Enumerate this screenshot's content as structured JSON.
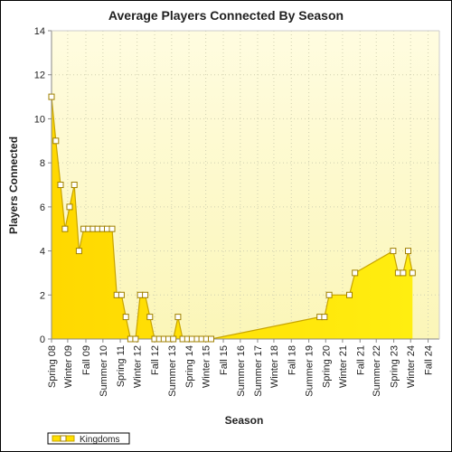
{
  "chart_data": {
    "type": "area",
    "title": "Average Players Connected By Season",
    "xlabel": "Season",
    "ylabel": "Players Connected",
    "ylim": [
      0,
      14
    ],
    "yticks": [
      0,
      2,
      4,
      6,
      8,
      10,
      12,
      14
    ],
    "grid": true,
    "legend_position": "bottom-left",
    "colors": {
      "fill": "#ffe000",
      "line": "#c8a400",
      "marker": "#ffffff",
      "background_top": "#fffce0",
      "background_bottom": "#fbf6b8"
    },
    "x_tick_labels": [
      {
        "label": "Spring 08",
        "day": 0
      },
      {
        "label": "Winter 09",
        "day": 259
      },
      {
        "label": "Fall 09",
        "day": 550
      },
      {
        "label": "Summer 10",
        "day": 823
      },
      {
        "label": "Spring 11",
        "day": 1101
      },
      {
        "label": "Winter 12",
        "day": 1370
      },
      {
        "label": "Fall 12",
        "day": 1651
      },
      {
        "label": "Summer 13",
        "day": 1923
      },
      {
        "label": "Spring 14",
        "day": 2201
      },
      {
        "label": "Winter 15",
        "day": 2470
      },
      {
        "label": "Fall 15",
        "day": 2751
      },
      {
        "label": "Summer 16",
        "day": 3023
      },
      {
        "label": "Summer 17",
        "day": 3300
      },
      {
        "label": "Winter 18",
        "day": 3560
      },
      {
        "label": "Fall 18",
        "day": 3840
      },
      {
        "label": "Summer 19",
        "day": 4120
      },
      {
        "label": "Spring 20",
        "day": 4390
      },
      {
        "label": "Winter 21",
        "day": 4660
      },
      {
        "label": "Fall 21",
        "day": 4940
      },
      {
        "label": "Summer 22",
        "day": 5200
      },
      {
        "label": "Spring 23",
        "day": 5480
      },
      {
        "label": "Winter 24",
        "day": 5750
      },
      {
        "label": "Fall 24",
        "day": 6030
      }
    ],
    "x_range_days": [
      0,
      6210
    ],
    "series": [
      {
        "name": "Kingdoms",
        "points": [
          {
            "day": 0,
            "value": 11
          },
          {
            "day": 70,
            "value": 9
          },
          {
            "day": 145,
            "value": 7
          },
          {
            "day": 215,
            "value": 5
          },
          {
            "day": 290,
            "value": 6
          },
          {
            "day": 365,
            "value": 7
          },
          {
            "day": 440,
            "value": 4
          },
          {
            "day": 515,
            "value": 5
          },
          {
            "day": 590,
            "value": 5
          },
          {
            "day": 665,
            "value": 5
          },
          {
            "day": 740,
            "value": 5
          },
          {
            "day": 815,
            "value": 5
          },
          {
            "day": 890,
            "value": 5
          },
          {
            "day": 970,
            "value": 5
          },
          {
            "day": 1045,
            "value": 2
          },
          {
            "day": 1120,
            "value": 2
          },
          {
            "day": 1190,
            "value": 1
          },
          {
            "day": 1265,
            "value": 0
          },
          {
            "day": 1345,
            "value": 0
          },
          {
            "day": 1420,
            "value": 2
          },
          {
            "day": 1500,
            "value": 2
          },
          {
            "day": 1575,
            "value": 1
          },
          {
            "day": 1650,
            "value": 0
          },
          {
            "day": 1725,
            "value": 0
          },
          {
            "day": 1800,
            "value": 0
          },
          {
            "day": 1875,
            "value": 0
          },
          {
            "day": 1950,
            "value": 0
          },
          {
            "day": 2025,
            "value": 1
          },
          {
            "day": 2100,
            "value": 0
          },
          {
            "day": 2175,
            "value": 0
          },
          {
            "day": 2250,
            "value": 0
          },
          {
            "day": 2330,
            "value": 0
          },
          {
            "day": 2405,
            "value": 0
          },
          {
            "day": 2480,
            "value": 0
          },
          {
            "day": 2555,
            "value": 0
          },
          {
            "day": 4295,
            "value": 1
          },
          {
            "day": 4370,
            "value": 1
          },
          {
            "day": 4445,
            "value": 2
          },
          {
            "day": 4770,
            "value": 2
          },
          {
            "day": 4860,
            "value": 3
          },
          {
            "day": 5470,
            "value": 4
          },
          {
            "day": 5550,
            "value": 3
          },
          {
            "day": 5630,
            "value": 3
          },
          {
            "day": 5710,
            "value": 4
          },
          {
            "day": 5780,
            "value": 3
          }
        ]
      }
    ]
  }
}
